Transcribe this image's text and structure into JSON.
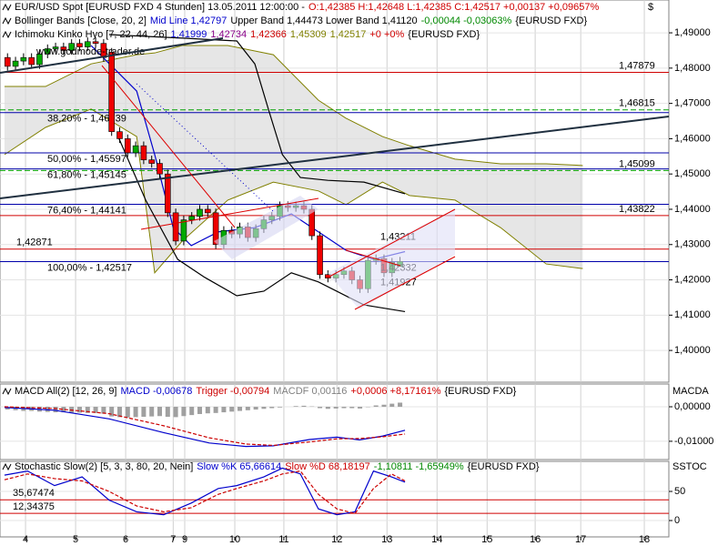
{
  "chart_data": [
    {
      "type": "candlestick",
      "header": [
        [
          {
            "text": "EUR/USD Spot [EURUSD FXD  4 Stunden] 13.05.2011 12:00:00 -",
            "color": "#000000"
          },
          {
            "text": "O:1,42385 H:1,42648 L:1,42385 C:1,42517 +0,00137 +0,09657%",
            "color": "#d00000"
          }
        ],
        [
          {
            "text": "Bollinger Bands [Close, 20, 2]",
            "color": "#000000"
          },
          {
            "text": "Mid Line 1,42797",
            "color": "#0000cc"
          },
          {
            "text": "Upper Band 1,44473 Lower Band 1,41120",
            "color": "#000000"
          },
          {
            "text": "-0,00044 -0,03063%",
            "color": "#008800"
          },
          {
            "text": "{EURUSD FXD}",
            "color": "#000000"
          }
        ],
        [
          {
            "text": "Ichimoku Kinko Hyo [7, 22, 44, 26]",
            "color": "#000000"
          },
          {
            "text": "1,41999",
            "color": "#0000cc"
          },
          {
            "text": "1,42734",
            "color": "#880088"
          },
          {
            "text": "1,42366",
            "color": "#cc0000"
          },
          {
            "text": "1,45309",
            "color": "#808000"
          },
          {
            "text": "1,42517",
            "color": "#808000"
          },
          {
            "text": "+0 +0%",
            "color": "#d00000"
          },
          {
            "text": "{EURUSD FXD}",
            "color": "#000000"
          }
        ]
      ],
      "watermark": "www.godmode-trader.de",
      "currency": "$",
      "x": [
        3.64,
        3.8,
        3.96,
        4.12,
        4.28,
        4.44,
        4.6,
        4.76,
        4.92,
        5.08,
        5.24,
        5.4,
        5.56,
        5.72,
        5.88,
        6.04,
        6.2,
        6.36,
        6.52,
        6.68,
        6.84,
        7,
        7.16,
        7.32,
        7.48,
        7.64,
        7.8,
        7.96,
        8.12,
        8.28,
        8.44,
        8.6,
        8.76,
        8.92,
        9.08,
        9.24,
        9.4,
        9.56,
        9.72,
        9.88,
        10.04,
        10.2,
        10.36,
        10.52,
        10.68,
        10.84,
        11,
        11.16,
        11.32,
        11.48
      ],
      "open": [
        1.483,
        1.4805,
        1.482,
        1.483,
        1.481,
        1.484,
        1.4855,
        1.486,
        1.485,
        1.487,
        1.486,
        1.4875,
        1.487,
        1.4845,
        1.462,
        1.46,
        1.456,
        1.458,
        1.454,
        1.453,
        1.45,
        1.439,
        1.431,
        1.437,
        1.438,
        1.44,
        1.439,
        1.43,
        1.434,
        1.433,
        1.435,
        1.432,
        1.4345,
        1.437,
        1.438,
        1.441,
        1.4405,
        1.441,
        1.44,
        1.4325,
        1.4215,
        1.4205,
        1.4215,
        1.4225,
        1.42,
        1.4175,
        1.4255,
        1.426,
        1.422,
        1.4238
      ],
      "high": [
        1.4842,
        1.4832,
        1.4842,
        1.4842,
        1.4852,
        1.4867,
        1.4872,
        1.4872,
        1.4882,
        1.4882,
        1.4887,
        1.4887,
        1.4882,
        1.4857,
        1.4632,
        1.4612,
        1.4592,
        1.4592,
        1.4552,
        1.4542,
        1.4512,
        1.4402,
        1.4382,
        1.4392,
        1.4412,
        1.4412,
        1.4402,
        1.4352,
        1.4352,
        1.4362,
        1.4362,
        1.4357,
        1.4382,
        1.4392,
        1.4422,
        1.4422,
        1.4422,
        1.4422,
        1.4412,
        1.4337,
        1.4227,
        1.4227,
        1.4237,
        1.4237,
        1.4212,
        1.4267,
        1.4272,
        1.4272,
        1.4262,
        1.4265
      ],
      "low": [
        1.4793,
        1.4793,
        1.4808,
        1.4798,
        1.4798,
        1.4828,
        1.4843,
        1.4838,
        1.4838,
        1.4848,
        1.4848,
        1.4858,
        1.4818,
        1.4608,
        1.4588,
        1.4548,
        1.4548,
        1.4528,
        1.4518,
        1.4488,
        1.4378,
        1.4298,
        1.4298,
        1.4358,
        1.4368,
        1.4378,
        1.4288,
        1.4288,
        1.4318,
        1.4318,
        1.4308,
        1.4308,
        1.4333,
        1.4358,
        1.4368,
        1.4393,
        1.4393,
        1.4388,
        1.4313,
        1.4203,
        1.4193,
        1.4193,
        1.4203,
        1.4188,
        1.4163,
        1.4163,
        1.4243,
        1.4208,
        1.4208,
        1.4238
      ],
      "close": [
        1.4805,
        1.482,
        1.483,
        1.481,
        1.484,
        1.4855,
        1.486,
        1.485,
        1.487,
        1.486,
        1.4875,
        1.487,
        1.483,
        1.462,
        1.46,
        1.456,
        1.458,
        1.454,
        1.453,
        1.45,
        1.439,
        1.431,
        1.437,
        1.438,
        1.44,
        1.439,
        1.43,
        1.434,
        1.433,
        1.435,
        1.432,
        1.4345,
        1.437,
        1.438,
        1.441,
        1.4405,
        1.441,
        1.44,
        1.4325,
        1.4215,
        1.4205,
        1.4215,
        1.4225,
        1.42,
        1.4175,
        1.4255,
        1.426,
        1.422,
        1.425,
        1.4252
      ],
      "up_color": "#00aa00",
      "down_color": "#ee0000",
      "xlim": [
        3.49,
        16.85
      ],
      "xticks": [
        4,
        5,
        6,
        {
          "value": 6.95,
          "label": "7"
        },
        {
          "value": 7.18,
          "label": "9"
        },
        {
          "value": 8.18,
          "label": "10"
        },
        {
          "value": 9.16,
          "label": "11"
        },
        {
          "value": 10.22,
          "label": "12"
        },
        {
          "value": 11.22,
          "label": "13"
        },
        {
          "value": 12.22,
          "label": "14"
        },
        {
          "value": 13.22,
          "label": "15"
        },
        {
          "value": 14.18,
          "label": "16"
        },
        {
          "value": 15.09,
          "label": "17"
        },
        {
          "value": 16.36,
          "label": "18"
        }
      ],
      "ylim": [
        1.391,
        1.4993
      ],
      "yticks": [
        {
          "value": 1.49,
          "label": "1,49000"
        },
        {
          "value": 1.48,
          "label": "1,48000"
        },
        {
          "value": 1.47,
          "label": "1,47000"
        },
        {
          "value": 1.46,
          "label": "1,46000"
        },
        {
          "value": 1.45,
          "label": "1,45000"
        },
        {
          "value": 1.44,
          "label": "1,44000"
        },
        {
          "value": 1.43,
          "label": "1,43000"
        },
        {
          "value": 1.42,
          "label": "1,42000"
        },
        {
          "value": 1.41,
          "label": "1,41000"
        },
        {
          "value": 1.4,
          "label": "1,40000"
        }
      ],
      "grid": true,
      "levels": [
        {
          "value": 1.47879,
          "label": "1,47879",
          "color": "#d00000"
        },
        {
          "value": 1.46815,
          "label": "1,46815",
          "color": "#00a000",
          "dashed": true
        },
        {
          "value": 1.45099,
          "label": "1,45099",
          "color": "#00a000",
          "dashed": true
        },
        {
          "value": 1.43822,
          "label": "1,43822",
          "color": "#d00000"
        },
        {
          "value": 1.42871,
          "label": "1,42871",
          "color": "#d00000"
        }
      ],
      "fib": [
        {
          "value": 1.46739,
          "label": "38,20% - 1,46739"
        },
        {
          "value": 1.45597,
          "label": "50,00% - 1,45597"
        },
        {
          "value": 1.45145,
          "label": "61,80% - 1,45145"
        },
        {
          "value": 1.44141,
          "label": "76,40% - 1,44141"
        },
        {
          "value": 1.42517,
          "label": "100,00% - 1,42517"
        }
      ],
      "fib_color": "#0000aa",
      "annotations": [
        {
          "value": 1.43211,
          "label": "1,43211"
        },
        {
          "value": 1.42332,
          "label": "1,42332"
        },
        {
          "value": 1.41927,
          "label": "1,41927"
        }
      ],
      "annotation_color": "#d00000",
      "bands": [
        {
          "color": "#0000cc",
          "x": [
            5.31,
            6.22,
            6.58,
            6.95,
            7.31,
            7.85,
            8.58,
            9.31,
            9.85,
            10.4,
            10.95,
            11.58
          ],
          "values": [
            1.4864,
            1.4735,
            1.4555,
            1.4348,
            1.4297,
            1.4336,
            1.4348,
            1.4387,
            1.4336,
            1.4284,
            1.4258,
            1.428
          ]
        },
        {
          "color": "#000000",
          "x": [
            5.67,
            7.13,
            8.22,
            8.58,
            8.85,
            9.13,
            9.49,
            10.04,
            10.76,
            11.58
          ],
          "values": [
            1.4895,
            1.4885,
            1.4877,
            1.4812,
            1.4684,
            1.4555,
            1.449,
            1.4482,
            1.4477,
            1.4444
          ]
        },
        {
          "color": "#000000",
          "x": [
            5.85,
            6.4,
            7.04,
            7.58,
            8.22,
            8.76,
            9.31,
            9.85,
            10.76,
            11.58
          ],
          "values": [
            1.4606,
            1.4426,
            1.4258,
            1.4207,
            1.4155,
            1.4168,
            1.422,
            1.4194,
            1.4129,
            1.411
          ]
        }
      ],
      "cloud": {
        "color": "#808000",
        "fill": "#dcdcdc",
        "x": [
          3.58,
          4.4,
          5.31,
          6.22,
          6.58,
          7.13,
          8.04,
          8.95,
          9.85,
          10.4,
          11.13,
          11.67,
          12.58,
          13.49,
          14.4,
          15.13
        ],
        "upper": [
          1.4748,
          1.4748,
          1.4812,
          1.4838,
          1.4843,
          1.4864,
          1.4864,
          1.4838,
          1.4709,
          1.4658,
          1.4606,
          1.458,
          1.4542,
          1.4529,
          1.4529,
          1.4524
        ],
        "lower": [
          1.4555,
          1.4632,
          1.4684,
          1.4606,
          1.422,
          1.431,
          1.4426,
          1.4477,
          1.4452,
          1.4413,
          1.4477,
          1.4439,
          1.4426,
          1.4348,
          1.4245,
          1.4232
        ]
      }
    },
    {
      "type": "macd",
      "header": [
        [
          {
            "text": "MACD All(2) [12, 26, 9]",
            "color": "#000000"
          },
          {
            "text": "MACD -0,00678",
            "color": "#0000cc"
          },
          {
            "text": "Trigger -0,00794",
            "color": "#cc0000"
          },
          {
            "text": "MACDF 0,00116",
            "color": "#808080"
          },
          {
            "text": "+0,0006 +8,17161%",
            "color": "#d00000"
          },
          {
            "text": "{EURUSD FXD}",
            "color": "#000000"
          }
        ]
      ],
      "axis_title": "MACDA",
      "ylim": [
        -0.0153,
        0.0066
      ],
      "yticks": [
        {
          "value": 0,
          "label": "0,00000"
        },
        {
          "value": -0.01,
          "label": "-0,01000"
        }
      ],
      "histogram": {
        "color": "#a0a0a0",
        "values": [
          -0.0008,
          -0.001,
          -0.0012,
          -0.0012,
          -0.0014,
          -0.0015,
          -0.0016,
          -0.0016,
          -0.0017,
          -0.0017,
          -0.0018,
          -0.0018,
          -0.002,
          -0.0028,
          -0.003,
          -0.0031,
          -0.003,
          -0.0029,
          -0.0028,
          -0.0027,
          -0.0029,
          -0.003,
          -0.0027,
          -0.0024,
          -0.0021,
          -0.0019,
          -0.0018,
          -0.0016,
          -0.0014,
          -0.0012,
          -0.001,
          -0.0008,
          -0.0006,
          -0.0004,
          -0.0002,
          0,
          0.0002,
          0.0003,
          0.0001,
          -0.0004,
          -0.0006,
          -0.0005,
          -0.0004,
          -0.0004,
          -0.0005,
          -0.0001,
          0.0004,
          0.0006,
          0.0009,
          0.0012
        ]
      },
      "series": [
        {
          "color": "#0000cc",
          "x": [
            3.58,
            4.58,
            5.67,
            6.76,
            7.67,
            8.4,
            8.95,
            9.67,
            10.22,
            10.67,
            11.13,
            11.58
          ],
          "values": [
            -0.0002,
            -0.001,
            -0.0035,
            -0.0075,
            -0.0105,
            -0.0115,
            -0.0113,
            -0.0095,
            -0.0088,
            -0.0096,
            -0.0085,
            -0.0068
          ]
        },
        {
          "color": "#cc0000",
          "dashed": true,
          "x": [
            3.58,
            4.58,
            5.67,
            6.76,
            7.67,
            8.4,
            8.95,
            9.67,
            10.22,
            10.67,
            11.13,
            11.58
          ],
          "values": [
            0,
            -0.0005,
            -0.002,
            -0.0055,
            -0.009,
            -0.0108,
            -0.0112,
            -0.0102,
            -0.0093,
            -0.0092,
            -0.0087,
            -0.0079
          ]
        }
      ]
    },
    {
      "type": "stochastic",
      "header": [
        [
          {
            "text": "Stochastic Slow(2) [5, 3, 3, 80, 20, Nein]",
            "color": "#000000"
          },
          {
            "text": "Slow %K 65,66614",
            "color": "#0000cc"
          },
          {
            "text": "Slow %D 68,18197",
            "color": "#cc0000"
          },
          {
            "text": "-1,10811 -1,65949%",
            "color": "#008800"
          },
          {
            "text": "{EURUSD FXD}",
            "color": "#000000"
          }
        ]
      ],
      "axis_title": "SSTOC",
      "ylim": [
        -28.1,
        101.6
      ],
      "yticks": [
        0,
        50
      ],
      "levels": [
        {
          "value": 35.67474,
          "label": "35,67474"
        },
        {
          "value": 12.34375,
          "label": "12,34375"
        }
      ],
      "level_color": "#d00000",
      "series": [
        {
          "color": "#0000cc",
          "x": [
            3.58,
            4.04,
            4.58,
            5.13,
            5.67,
            6.22,
            6.76,
            7.31,
            7.85,
            8.22,
            8.76,
            9.13,
            9.49,
            9.85,
            10.22,
            10.58,
            10.95,
            11.31,
            11.58
          ],
          "values": [
            78,
            85,
            60,
            75,
            35,
            15,
            10,
            30,
            55,
            60,
            75,
            90,
            80,
            20,
            10,
            15,
            85,
            75,
            66
          ]
        },
        {
          "color": "#cc0000",
          "dashed": true,
          "x": [
            3.58,
            4.04,
            4.58,
            5.13,
            5.67,
            6.22,
            6.76,
            7.31,
            7.85,
            8.22,
            8.76,
            9.13,
            9.49,
            9.85,
            10.22,
            10.58,
            10.95,
            11.31,
            11.58
          ],
          "values": [
            70,
            80,
            72,
            68,
            50,
            25,
            15,
            22,
            45,
            55,
            68,
            80,
            85,
            45,
            20,
            12,
            55,
            80,
            68
          ]
        }
      ]
    }
  ]
}
